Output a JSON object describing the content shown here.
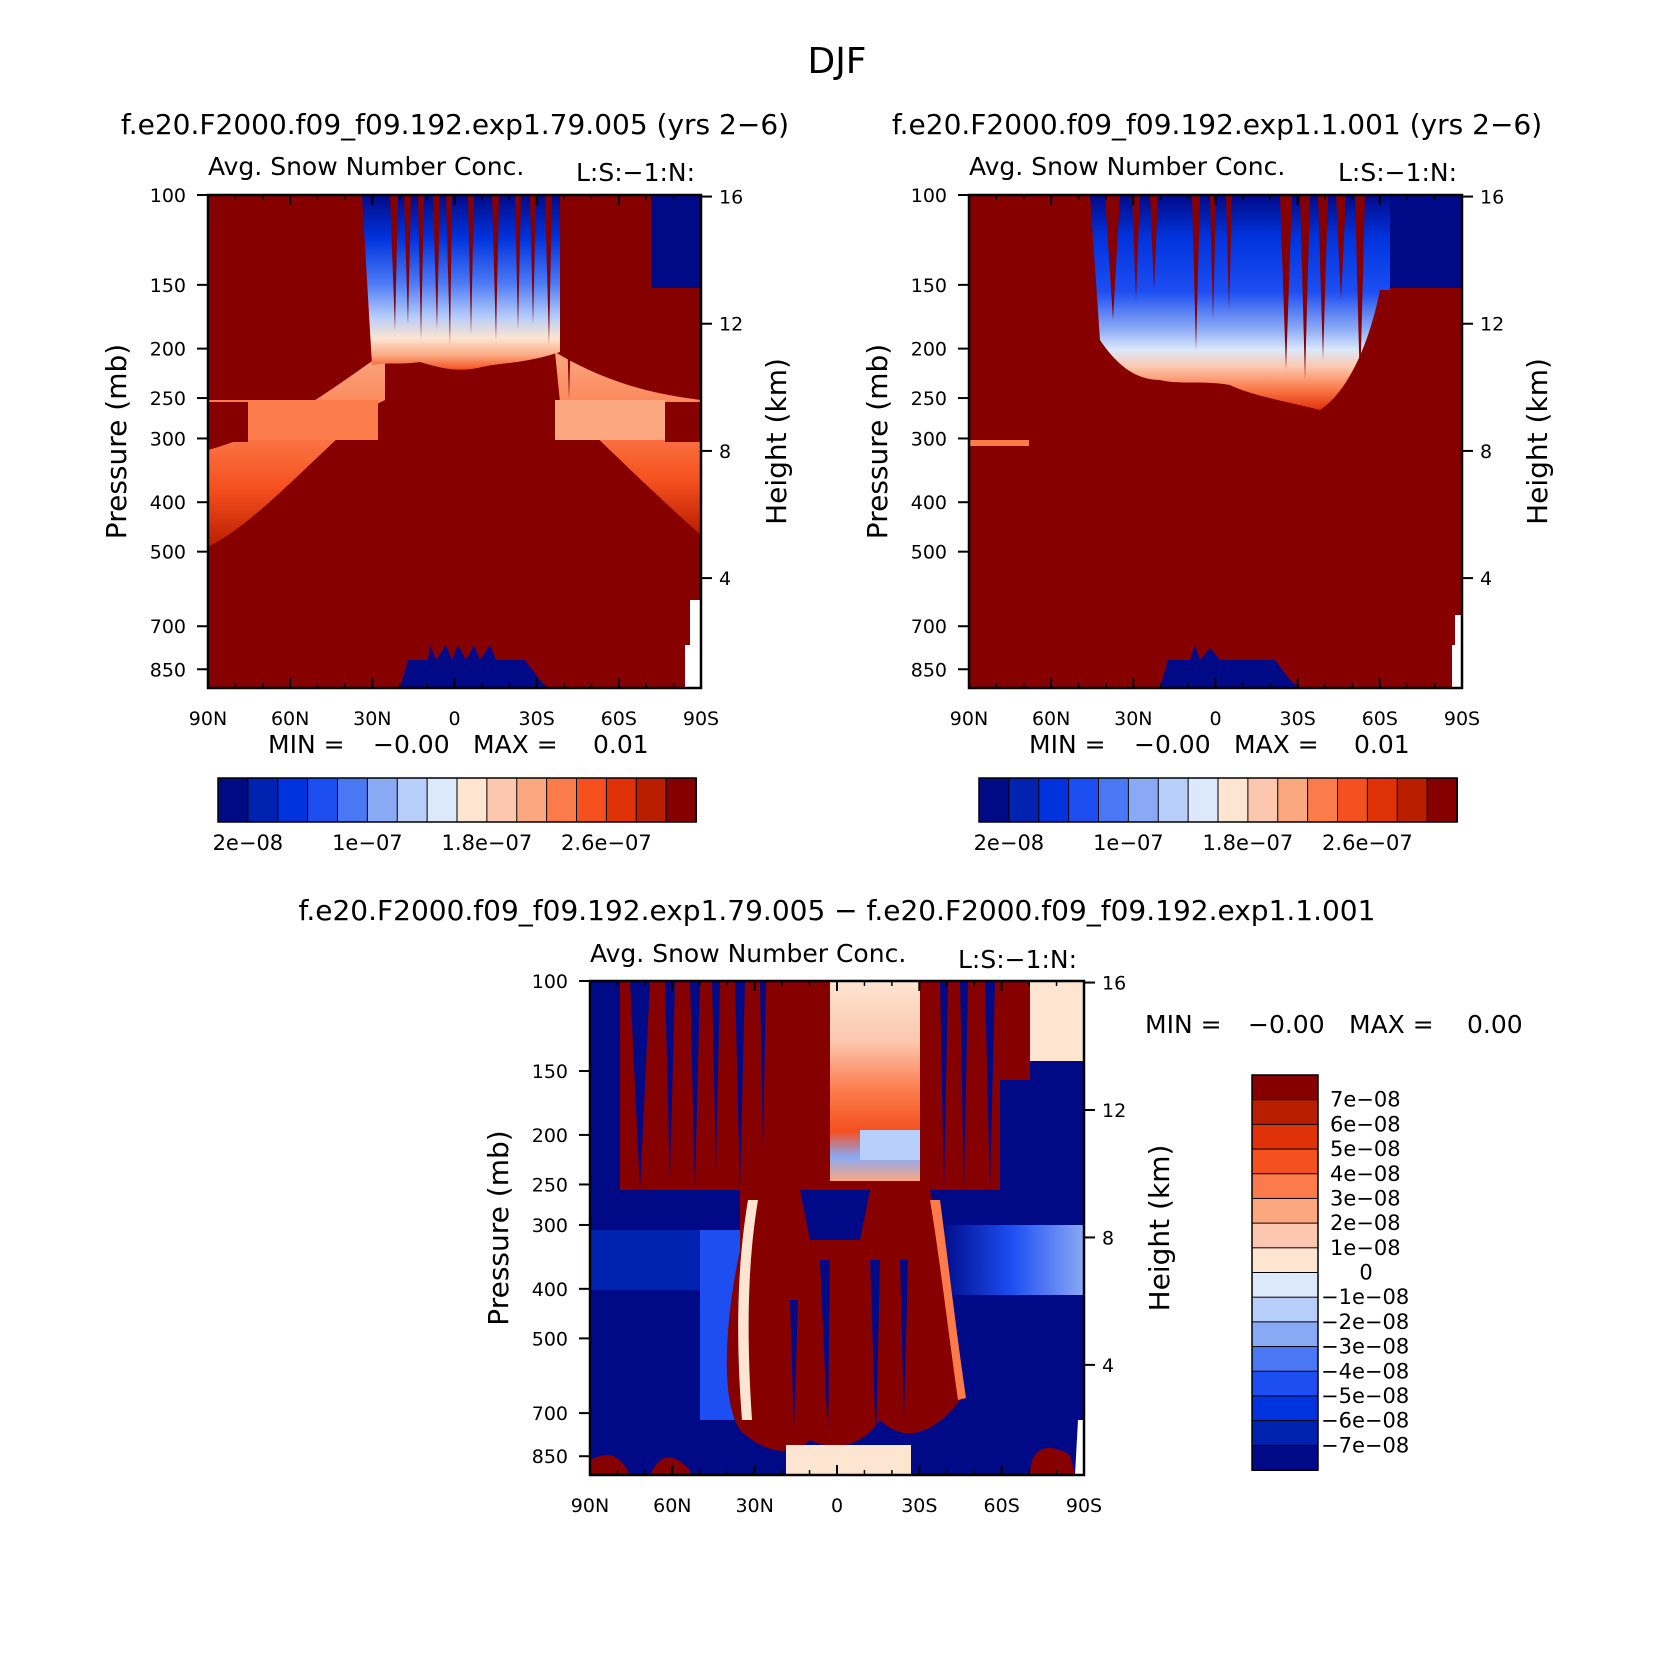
{
  "figure": {
    "title": "DJF"
  },
  "colors": {
    "blues": [
      "#000a87",
      "#0022b0",
      "#0033dd",
      "#1d4ef2",
      "#4a78f5",
      "#8aa9f5",
      "#b7cdfa",
      "#dbe9fb"
    ],
    "light": "#fde5d2",
    "reds": [
      "#fcc7ae",
      "#fba780",
      "#fb7b4b",
      "#f5501f",
      "#e03208",
      "#ba1e00",
      "#870000"
    ],
    "diff_top_to_bottom": [
      "#870000",
      "#ba1e00",
      "#e03208",
      "#f5501f",
      "#fb7b4b",
      "#fba780",
      "#fcc7ae",
      "#fde5d2",
      "#dbe9fb",
      "#b7cdfa",
      "#8aa9f5",
      "#4a78f5",
      "#1d4ef2",
      "#0033dd",
      "#0022b0",
      "#000a87"
    ]
  },
  "chart_data": [
    {
      "type": "heatmap",
      "title": "f.e20.F2000.f09_f09.192.exp1.79.005 (yrs 2−6)",
      "subtitle_left": "Avg. Snow Number Conc.",
      "subtitle_right": "L:S:−1:N:",
      "ylabel": "Pressure (mb)",
      "ylabel_right": "Height (km)",
      "x_ticks": [
        "90N",
        "60N",
        "30N",
        "0",
        "30S",
        "60S",
        "90S"
      ],
      "y_ticks": [
        "100",
        "150",
        "200",
        "250",
        "300",
        "400",
        "500",
        "700",
        "850"
      ],
      "y_values": [
        100,
        150,
        200,
        250,
        300,
        400,
        500,
        700,
        850
      ],
      "ylim": [
        100,
        925
      ],
      "height_ticks": [
        "16",
        "12",
        "8",
        "4"
      ],
      "height_values": [
        16,
        12,
        8,
        4
      ],
      "min_label": "MIN =",
      "min_value": "−0.00",
      "max_label": "MAX =",
      "max_value": "0.01",
      "colorbar_labels": [
        "2e−08",
        "1e−07",
        "1.8e−07",
        "2.6e−07"
      ],
      "colorbar_label_index": [
        1,
        5,
        9,
        13
      ],
      "colorbar_levels": 16
    },
    {
      "type": "heatmap",
      "title": "f.e20.F2000.f09_f09.192.exp1.1.001 (yrs 2−6)",
      "subtitle_left": "Avg. Snow Number Conc.",
      "subtitle_right": "L:S:−1:N:",
      "ylabel": "Pressure (mb)",
      "ylabel_right": "Height (km)",
      "x_ticks": [
        "90N",
        "60N",
        "30N",
        "0",
        "30S",
        "60S",
        "90S"
      ],
      "y_ticks": [
        "100",
        "150",
        "200",
        "250",
        "300",
        "400",
        "500",
        "700",
        "850"
      ],
      "y_values": [
        100,
        150,
        200,
        250,
        300,
        400,
        500,
        700,
        850
      ],
      "ylim": [
        100,
        925
      ],
      "height_ticks": [
        "16",
        "12",
        "8",
        "4"
      ],
      "height_values": [
        16,
        12,
        8,
        4
      ],
      "min_label": "MIN =",
      "min_value": "−0.00",
      "max_label": "MAX =",
      "max_value": "0.01",
      "colorbar_labels": [
        "2e−08",
        "1e−07",
        "1.8e−07",
        "2.6e−07"
      ],
      "colorbar_label_index": [
        1,
        5,
        9,
        13
      ],
      "colorbar_levels": 16
    },
    {
      "type": "heatmap",
      "title": "f.e20.F2000.f09_f09.192.exp1.79.005 − f.e20.F2000.f09_f09.192.exp1.1.001",
      "subtitle_left": "Avg. Snow Number Conc.",
      "subtitle_right": "L:S:−1:N:",
      "ylabel": "Pressure (mb)",
      "ylabel_right": "Height (km)",
      "x_ticks": [
        "90N",
        "60N",
        "30N",
        "0",
        "30S",
        "60S",
        "90S"
      ],
      "y_ticks": [
        "100",
        "150",
        "200",
        "250",
        "300",
        "400",
        "500",
        "700",
        "850"
      ],
      "y_values": [
        100,
        150,
        200,
        250,
        300,
        400,
        500,
        700,
        850
      ],
      "ylim": [
        100,
        925
      ],
      "height_ticks": [
        "16",
        "12",
        "8",
        "4"
      ],
      "height_values": [
        16,
        12,
        8,
        4
      ],
      "min_label": "MIN =",
      "min_value": "−0.00",
      "max_label": "MAX =",
      "max_value": "0.00",
      "colorbar_labels": [
        "7e−08",
        "6e−08",
        "5e−08",
        "4e−08",
        "3e−08",
        "2e−08",
        "1e−08",
        "0",
        "−1e−08",
        "−2e−08",
        "−3e−08",
        "−4e−08",
        "−5e−08",
        "−6e−08",
        "−7e−08"
      ],
      "colorbar_levels": 16
    }
  ]
}
